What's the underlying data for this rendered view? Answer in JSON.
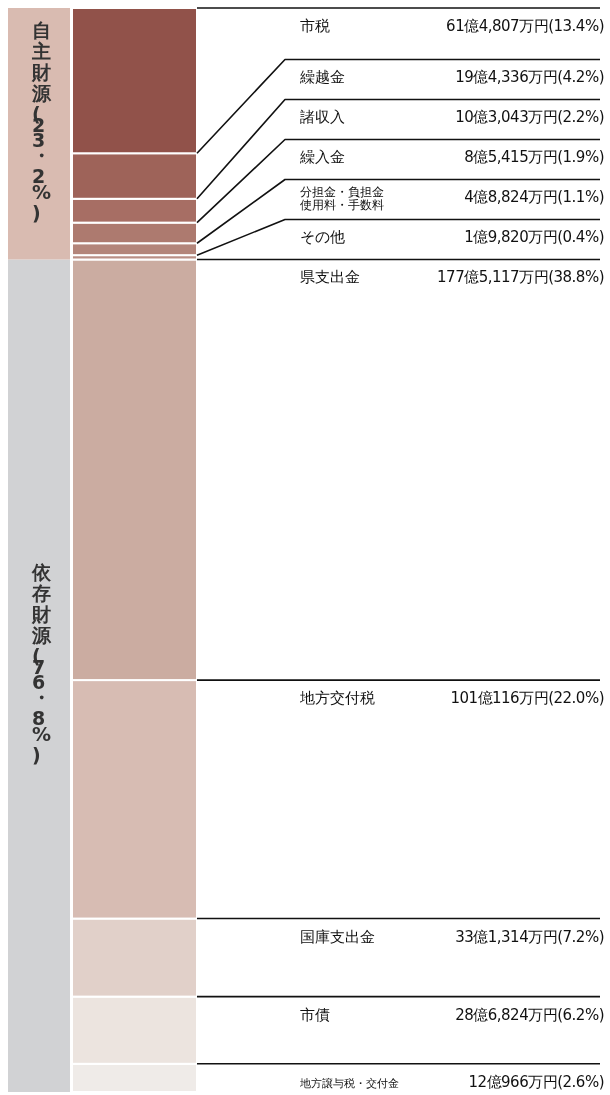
{
  "chart_data": {
    "type": "bar",
    "stacked": true,
    "categories": [
      null
    ],
    "ylim": [
      0,
      100
    ],
    "series": [
      {
        "name": "地方譲与税・交付金",
        "color": "#efebe8",
        "values": [
          2.6
        ],
        "value_labels": [
          "12億966万円(2.6%)"
        ]
      },
      {
        "name": "市債",
        "color": "#ece4df",
        "values": [
          6.2
        ],
        "value_labels": [
          "28億6,824万円(6.2%)"
        ]
      },
      {
        "name": "国庫支出金",
        "color": "#e1d0c9",
        "values": [
          7.2
        ],
        "value_labels": [
          "33億1,314万円(7.2%)"
        ]
      },
      {
        "name": "地方交付税",
        "color": "#d7bcb3",
        "values": [
          22.0
        ],
        "value_labels": [
          "101億116万円(22.0%)"
        ]
      },
      {
        "name": "県支出金",
        "color": "#cbaca1",
        "values": [
          38.8
        ],
        "value_labels": [
          "177億5,117万円(38.8%)"
        ]
      },
      {
        "name": "その他",
        "color": "#b98f85",
        "values": [
          0.4
        ],
        "value_labels": [
          "1億9,820万円(0.4%)"
        ]
      },
      {
        "name": "分担金・負担金使用料・手数料",
        "color": "#b3857a",
        "values": [
          1.1
        ],
        "value_labels": [
          "4億8,824万円(1.1%)"
        ]
      },
      {
        "name": "繰入金",
        "color": "#ad7a6f",
        "values": [
          1.9
        ],
        "value_labels": [
          "8億5,415万円(1.9%)"
        ]
      },
      {
        "name": "諸収入",
        "color": "#a76e64",
        "values": [
          2.2
        ],
        "value_labels": [
          "10億3,043万円(2.2%)"
        ]
      },
      {
        "name": "繰越金",
        "color": "#9e6359",
        "values": [
          4.2
        ],
        "value_labels": [
          "19億4,336万円(4.2%)"
        ]
      },
      {
        "name": "市税",
        "color": "#91524a",
        "values": [
          13.4
        ],
        "value_labels": [
          "61億4,807万円(13.4%)"
        ]
      }
    ],
    "annotations": [
      "依存財源(76・8%)",
      "自主財源(23・2%)"
    ]
  }
}
